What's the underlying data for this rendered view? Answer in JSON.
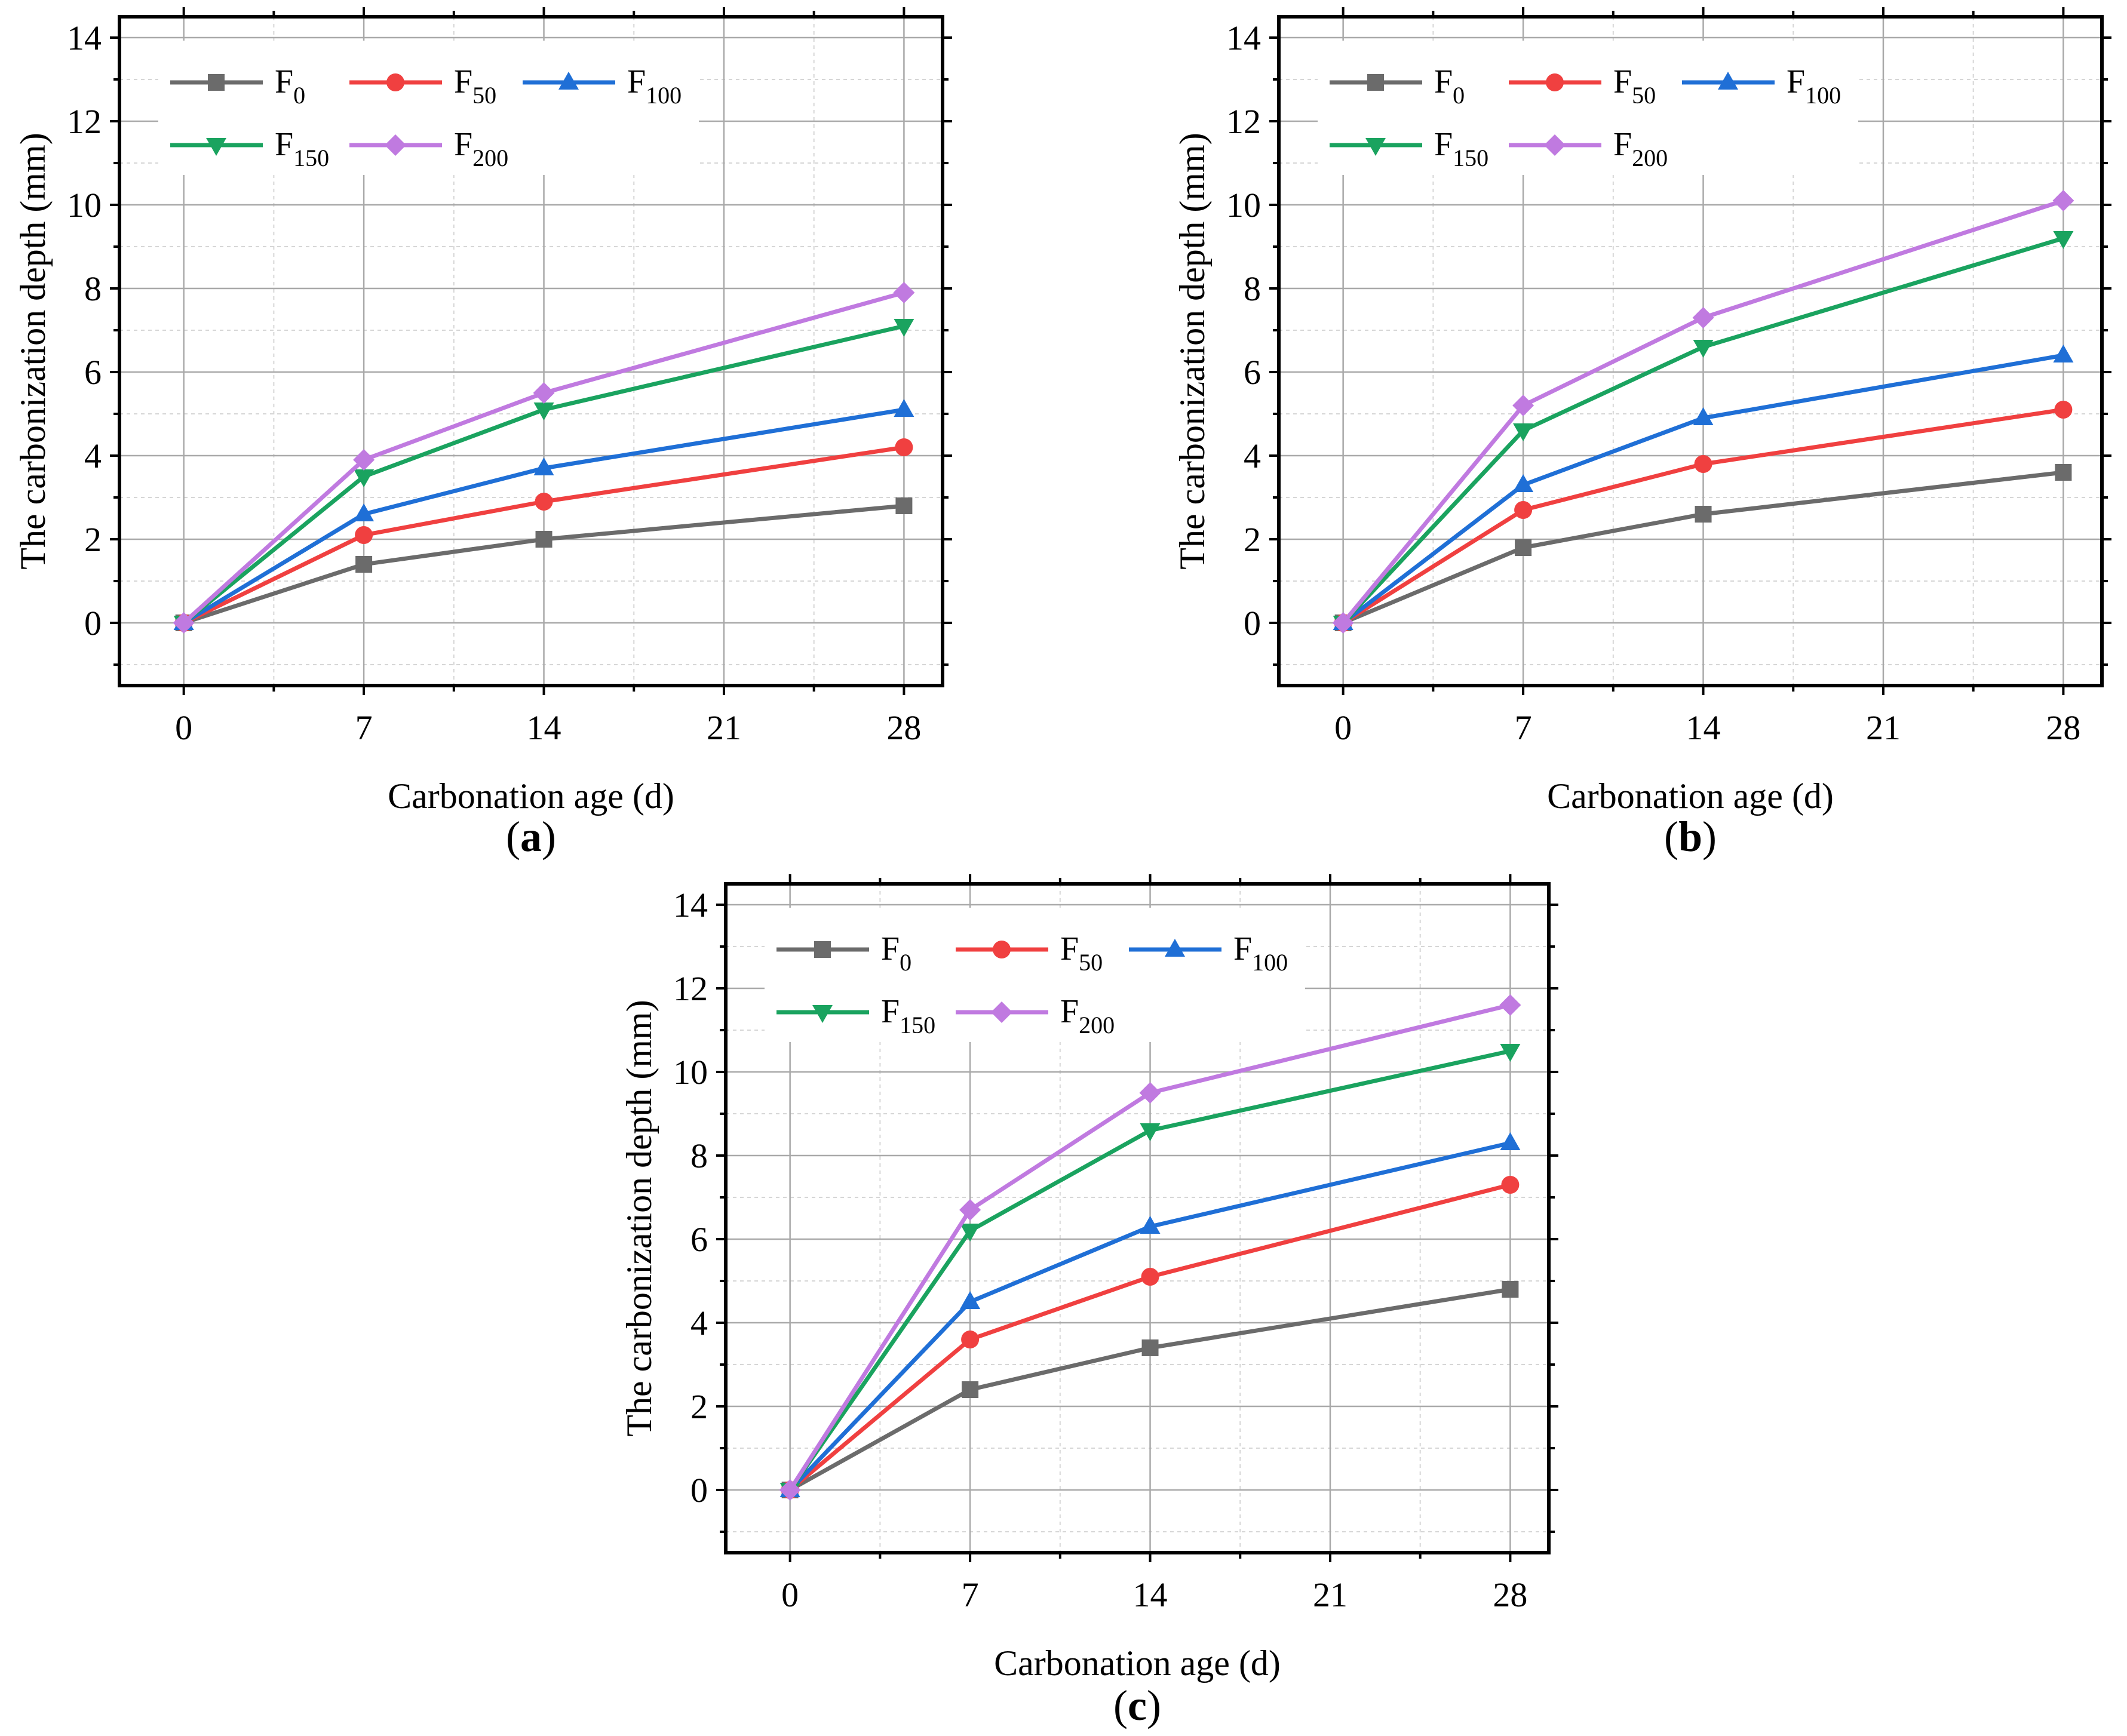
{
  "chart_data": [
    {
      "type": "line",
      "panel_label": "a",
      "xlabel": "Carbonation age (d)",
      "ylabel": "The carbonization depth (mm)",
      "xlim": [
        -2.5,
        29.5
      ],
      "ylim": [
        -1.5,
        14.5
      ],
      "xticks": [
        0,
        7,
        14,
        21,
        28
      ],
      "yticks": [
        0,
        2,
        4,
        6,
        8,
        10,
        12,
        14
      ],
      "grid": true,
      "legend_position": "top-left",
      "x": [
        0,
        7,
        14,
        28
      ],
      "series": [
        {
          "name": "F",
          "sub": "0",
          "color": "#6b6b6b",
          "marker": "square",
          "values": [
            0,
            1.4,
            2.0,
            2.8
          ]
        },
        {
          "name": "F",
          "sub": "50",
          "color": "#f04040",
          "marker": "circle",
          "values": [
            0,
            2.1,
            2.9,
            4.2
          ]
        },
        {
          "name": "F",
          "sub": "100",
          "color": "#1f6fd6",
          "marker": "triangle-up",
          "values": [
            0,
            2.6,
            3.7,
            5.1
          ]
        },
        {
          "name": "F",
          "sub": "150",
          "color": "#1aa35f",
          "marker": "triangle-down",
          "values": [
            0,
            3.5,
            5.1,
            7.1
          ]
        },
        {
          "name": "F",
          "sub": "200",
          "color": "#c07ae0",
          "marker": "diamond",
          "values": [
            0,
            3.9,
            5.5,
            7.9
          ]
        }
      ]
    },
    {
      "type": "line",
      "panel_label": "b",
      "xlabel": "Carbonation age (d)",
      "ylabel": "The carbonization depth (mm)",
      "xlim": [
        -2.5,
        29.5
      ],
      "ylim": [
        -1.5,
        14.5
      ],
      "xticks": [
        0,
        7,
        14,
        21,
        28
      ],
      "yticks": [
        0,
        2,
        4,
        6,
        8,
        10,
        12,
        14
      ],
      "grid": true,
      "legend_position": "top-left",
      "x": [
        0,
        7,
        14,
        28
      ],
      "series": [
        {
          "name": "F",
          "sub": "0",
          "color": "#6b6b6b",
          "marker": "square",
          "values": [
            0,
            1.8,
            2.6,
            3.6
          ]
        },
        {
          "name": "F",
          "sub": "50",
          "color": "#f04040",
          "marker": "circle",
          "values": [
            0,
            2.7,
            3.8,
            5.1
          ]
        },
        {
          "name": "F",
          "sub": "100",
          "color": "#1f6fd6",
          "marker": "triangle-up",
          "values": [
            0,
            3.3,
            4.9,
            6.4
          ]
        },
        {
          "name": "F",
          "sub": "150",
          "color": "#1aa35f",
          "marker": "triangle-down",
          "values": [
            0,
            4.6,
            6.6,
            9.2
          ]
        },
        {
          "name": "F",
          "sub": "200",
          "color": "#c07ae0",
          "marker": "diamond",
          "values": [
            0,
            5.2,
            7.3,
            10.1
          ]
        }
      ]
    },
    {
      "type": "line",
      "panel_label": "c",
      "xlabel": "Carbonation age (d)",
      "ylabel": "The carbonization depth (mm)",
      "xlim": [
        -2.5,
        29.5
      ],
      "ylim": [
        -1.5,
        14.5
      ],
      "xticks": [
        0,
        7,
        14,
        21,
        28
      ],
      "yticks": [
        0,
        2,
        4,
        6,
        8,
        10,
        12,
        14
      ],
      "grid": true,
      "legend_position": "top-left",
      "x": [
        0,
        7,
        14,
        28
      ],
      "series": [
        {
          "name": "F",
          "sub": "0",
          "color": "#6b6b6b",
          "marker": "square",
          "values": [
            0,
            2.4,
            3.4,
            4.8
          ]
        },
        {
          "name": "F",
          "sub": "50",
          "color": "#f04040",
          "marker": "circle",
          "values": [
            0,
            3.6,
            5.1,
            7.3
          ]
        },
        {
          "name": "F",
          "sub": "100",
          "color": "#1f6fd6",
          "marker": "triangle-up",
          "values": [
            0,
            4.5,
            6.3,
            8.3
          ]
        },
        {
          "name": "F",
          "sub": "150",
          "color": "#1aa35f",
          "marker": "triangle-down",
          "values": [
            0,
            6.2,
            8.6,
            10.5
          ]
        },
        {
          "name": "F",
          "sub": "200",
          "color": "#c07ae0",
          "marker": "diamond",
          "values": [
            0,
            6.7,
            9.5,
            11.6
          ]
        }
      ]
    }
  ]
}
